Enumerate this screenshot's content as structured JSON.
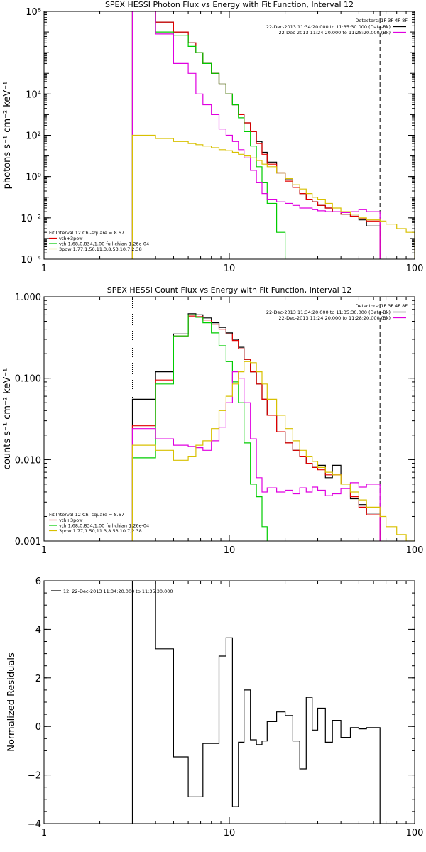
{
  "chart_data": [
    {
      "type": "line",
      "title": "SPEX HESSI Photon Flux vs Energy with Fit Function, Interval 12",
      "ylabel": "photons s⁻¹ cm⁻² keV⁻¹",
      "xscale": "log",
      "yscale": "log",
      "xlim": [
        1,
        100
      ],
      "ylim": [
        0.0001,
        100000000
      ],
      "x_ticks": [
        1,
        10,
        100
      ],
      "x_tick_labels": [
        "1",
        "10",
        "100"
      ],
      "y_ticks": [
        0.0001,
        0.01,
        1,
        100,
        10000,
        100000000
      ],
      "y_tick_labels": [
        "10⁻⁴",
        "10⁻²",
        "10⁰",
        "10²",
        "10⁴",
        "10⁸"
      ],
      "vlines": [
        {
          "x": 3.0,
          "style": "dotted"
        },
        {
          "x": 65,
          "style": "dashed"
        }
      ],
      "legend_header": "Detectors: 1F 3F 4F 8F",
      "legend": [
        {
          "label": "22-Dec-2013 11:34:20.000 to 11:35:30.000 (Data-Bk)",
          "color": "#000000"
        },
        {
          "label": "22-Dec-2013 11:24:20.000 to 11:28:20.000 (Bk)",
          "color": "#e000e0"
        }
      ],
      "fit_header": "Fit Interval 12   Chi-square = 8.67",
      "fit_legend": [
        {
          "label": "vth+3pow",
          "color": "#e00000"
        },
        {
          "label": "vth 1.68,0.834,1.00  full chian 1.26e-04",
          "color": "#00cc00"
        },
        {
          "label": "3pow 1.77,1.50,11.3,8.53,10.7,2.38",
          "color": "#d8c000"
        }
      ],
      "series": [
        {
          "color": "#000000",
          "edges": [
            3.0,
            4.0,
            5.0,
            6.0,
            6.6,
            7.2,
            8.0,
            8.8,
            9.6,
            10.4,
            11.2,
            12.0,
            13.0,
            14.0,
            15.0,
            16.0,
            18.0,
            20.0,
            22.0,
            24.0,
            26.0,
            28.0,
            30.0,
            33.0,
            36.0,
            40.0,
            45.0,
            50.0,
            55.0,
            65.0
          ],
          "values": [
            700000000,
            30000000,
            10000000,
            3000000,
            1000000,
            300000,
            100000,
            30000,
            10000,
            3000,
            1000,
            400,
            150,
            50,
            15,
            5,
            1.5,
            0.7,
            0.3,
            0.15,
            0.08,
            0.06,
            0.04,
            0.03,
            0.02,
            0.015,
            0.012,
            0.008,
            0.004
          ]
        },
        {
          "color": "#e00000",
          "edges": [
            3.0,
            4.0,
            5.0,
            6.0,
            6.6,
            7.2,
            8.0,
            8.8,
            9.6,
            10.4,
            11.2,
            12.0,
            13.0,
            14.0,
            15.0,
            16.0,
            18.0,
            20.0,
            22.0,
            24.0,
            26.0,
            28.0,
            30.0,
            33.0,
            36.0,
            40.0,
            45.0,
            50.0,
            55.0,
            65.0
          ],
          "values": [
            400000000,
            30000000,
            10000000,
            3000000,
            1000000,
            300000,
            100000,
            30000,
            10000,
            3000,
            1000,
            400,
            150,
            40,
            12,
            4,
            1.5,
            0.6,
            0.3,
            0.15,
            0.08,
            0.06,
            0.04,
            0.03,
            0.02,
            0.015,
            0.012,
            0.009,
            0.007
          ]
        },
        {
          "color": "#00cc00",
          "edges": [
            3.0,
            4.0,
            5.0,
            6.0,
            6.6,
            7.2,
            8.0,
            8.8,
            9.6,
            10.4,
            11.2,
            12.0,
            13.0,
            14.0,
            15.0,
            16.0,
            18.0,
            20.0
          ],
          "values": [
            400000000,
            10000000,
            7000000,
            2000000,
            1000000,
            300000,
            100000,
            30000,
            10000,
            3000,
            700,
            150,
            30,
            3,
            0.5,
            0.05,
            0.002,
            0.0001
          ]
        },
        {
          "color": "#e000e0",
          "edges": [
            3.0,
            4.0,
            5.0,
            6.0,
            6.6,
            7.2,
            8.0,
            8.8,
            9.6,
            10.4,
            11.2,
            12.0,
            13.0,
            14.0,
            15.0,
            16.0,
            18.0,
            20.0,
            22.0,
            24.0,
            26.0,
            28.0,
            30.0,
            33.0,
            36.0,
            40.0,
            45.0,
            50.0,
            55.0,
            65.0
          ],
          "values": [
            200000000,
            8000000,
            300000,
            100000,
            10000,
            3000,
            1000,
            200,
            100,
            50,
            20,
            8,
            2,
            0.5,
            0.15,
            0.08,
            0.06,
            0.05,
            0.04,
            0.03,
            0.03,
            0.025,
            0.022,
            0.02,
            0.02,
            0.018,
            0.02,
            0.025,
            0.02
          ]
        },
        {
          "color": "#d8c000",
          "edges": [
            3.0,
            4.0,
            5.0,
            6.0,
            6.6,
            7.2,
            8.0,
            8.8,
            9.6,
            10.4,
            11.2,
            12.0,
            13.0,
            14.0,
            15.0,
            16.0,
            18.0,
            20.0,
            22.0,
            24.0,
            26.0,
            28.0,
            30.0,
            33.0,
            36.0,
            40.0,
            45.0,
            50.0,
            55.0,
            65.0,
            70.0,
            80.0,
            90.0,
            100.0
          ],
          "values": [
            100,
            70,
            50,
            40,
            35,
            30,
            25,
            20,
            18,
            15,
            12,
            10,
            8,
            6,
            4,
            3,
            1.5,
            0.8,
            0.4,
            0.25,
            0.15,
            0.1,
            0.08,
            0.05,
            0.03,
            0.02,
            0.015,
            0.01,
            0.008,
            0.007,
            0.005,
            0.003,
            0.002
          ]
        }
      ]
    },
    {
      "type": "line",
      "title": "SPEX HESSI Count Flux vs Energy with Fit Function, Interval 12",
      "ylabel": "counts s⁻¹ cm⁻² keV⁻¹",
      "xscale": "log",
      "yscale": "log",
      "xlim": [
        1,
        100
      ],
      "ylim": [
        0.001,
        1
      ],
      "x_ticks": [
        1,
        10,
        100
      ],
      "x_tick_labels": [
        "1",
        "10",
        "100"
      ],
      "y_ticks": [
        0.001,
        0.01,
        0.1,
        1
      ],
      "y_tick_labels": [
        "0.001",
        "0.010",
        "0.100",
        "1.000"
      ],
      "vlines": [
        {
          "x": 3.0,
          "style": "dotted"
        },
        {
          "x": 65,
          "style": "dashed"
        }
      ],
      "legend_header": "Detectors: 1F 3F 4F 8F",
      "legend": [
        {
          "label": "22-Dec-2013 11:34:20.000 to 11:35:30.000 (Data-Bk)",
          "color": "#000000"
        },
        {
          "label": "22-Dec-2013 11:24:20.000 to 11:28:20.000 (Bk)",
          "color": "#e000e0"
        }
      ],
      "fit_header": "Fit Interval 12   Chi-square = 8.67",
      "fit_legend": [
        {
          "label": "vth+3pow",
          "color": "#e00000"
        },
        {
          "label": "vth 1.68,0.834,1.00  full chian 1.26e-04",
          "color": "#00cc00"
        },
        {
          "label": "3pow 1.77,1.50,11.3,8.53,10.7,2.38",
          "color": "#d8c000"
        }
      ],
      "series": [
        {
          "color": "#000000",
          "edges": [
            3.0,
            4.0,
            5.0,
            6.0,
            6.6,
            7.2,
            8.0,
            8.8,
            9.6,
            10.4,
            11.2,
            12.0,
            13.0,
            14.0,
            15.0,
            16.0,
            18.0,
            20.0,
            22.0,
            24.0,
            26.0,
            28.0,
            30.0,
            33.0,
            36.0,
            40.0,
            45.0,
            50.0,
            55.0,
            65.0
          ],
          "values": [
            0.055,
            0.12,
            0.35,
            0.62,
            0.6,
            0.55,
            0.48,
            0.42,
            0.36,
            0.3,
            0.24,
            0.17,
            0.12,
            0.085,
            0.055,
            0.035,
            0.022,
            0.016,
            0.013,
            0.011,
            0.009,
            0.008,
            0.0085,
            0.006,
            0.0085,
            0.005,
            0.0033,
            0.0028,
            0.0022
          ]
        },
        {
          "color": "#e00000",
          "edges": [
            3.0,
            4.0,
            5.0,
            6.0,
            6.6,
            7.2,
            8.0,
            8.8,
            9.6,
            10.4,
            11.2,
            12.0,
            13.0,
            14.0,
            15.0,
            16.0,
            18.0,
            20.0,
            22.0,
            24.0,
            26.0,
            28.0,
            30.0,
            33.0,
            36.0,
            40.0,
            45.0,
            50.0,
            55.0,
            65.0
          ],
          "values": [
            0.026,
            0.095,
            0.33,
            0.58,
            0.57,
            0.52,
            0.46,
            0.4,
            0.35,
            0.29,
            0.23,
            0.17,
            0.12,
            0.085,
            0.055,
            0.035,
            0.022,
            0.016,
            0.013,
            0.011,
            0.009,
            0.008,
            0.0075,
            0.0065,
            0.0065,
            0.005,
            0.0035,
            0.0026,
            0.0021
          ]
        },
        {
          "color": "#00cc00",
          "edges": [
            3.0,
            4.0,
            5.0,
            6.0,
            6.6,
            7.2,
            8.0,
            8.8,
            9.6,
            10.4,
            11.2,
            12.0,
            13.0,
            14.0,
            15.0,
            16.0
          ],
          "values": [
            0.0105,
            0.085,
            0.33,
            0.6,
            0.56,
            0.48,
            0.36,
            0.25,
            0.16,
            0.09,
            0.05,
            0.016,
            0.005,
            0.0035,
            0.0015,
            0.0009
          ]
        },
        {
          "color": "#e000e0",
          "edges": [
            3.0,
            4.0,
            5.0,
            6.0,
            6.6,
            7.2,
            8.0,
            8.8,
            9.6,
            10.4,
            11.2,
            12.0,
            13.0,
            14.0,
            15.0,
            16.0,
            18.0,
            20.0,
            22.0,
            24.0,
            26.0,
            28.0,
            30.0,
            33.0,
            36.0,
            40.0,
            45.0,
            50.0,
            55.0,
            65.0
          ],
          "values": [
            0.024,
            0.018,
            0.015,
            0.0145,
            0.014,
            0.013,
            0.017,
            0.025,
            0.05,
            0.12,
            0.1,
            0.05,
            0.018,
            0.006,
            0.004,
            0.0045,
            0.004,
            0.0042,
            0.0038,
            0.0045,
            0.004,
            0.0046,
            0.0042,
            0.0036,
            0.0038,
            0.0044,
            0.0052,
            0.0046,
            0.005
          ]
        },
        {
          "color": "#d8c000",
          "edges": [
            3.0,
            4.0,
            5.0,
            6.0,
            6.6,
            7.2,
            8.0,
            8.8,
            9.6,
            10.4,
            11.2,
            12.0,
            13.0,
            14.0,
            15.0,
            16.0,
            18.0,
            20.0,
            22.0,
            24.0,
            26.0,
            28.0,
            30.0,
            33.0,
            36.0,
            40.0,
            45.0,
            50.0,
            55.0,
            65.0,
            70.0,
            80.0,
            90.0,
            100.0
          ],
          "values": [
            0.015,
            0.013,
            0.0098,
            0.011,
            0.015,
            0.017,
            0.024,
            0.04,
            0.06,
            0.085,
            0.12,
            0.16,
            0.155,
            0.12,
            0.085,
            0.055,
            0.035,
            0.024,
            0.017,
            0.013,
            0.011,
            0.0095,
            0.008,
            0.007,
            0.0065,
            0.005,
            0.004,
            0.0032,
            0.0026,
            0.002,
            0.0015,
            0.0012,
            0.001
          ]
        }
      ]
    },
    {
      "type": "line",
      "title": "",
      "ylabel": "Normalized Residuals",
      "xscale": "log",
      "yscale": "linear",
      "xlim": [
        1,
        100
      ],
      "ylim": [
        -4,
        6
      ],
      "x_ticks": [
        1,
        10,
        100
      ],
      "x_tick_labels": [
        "1",
        "10",
        "100"
      ],
      "y_ticks": [
        -4,
        -2,
        0,
        2,
        4,
        6
      ],
      "y_tick_labels": [
        "−4",
        "−2",
        "0",
        "2",
        "4",
        "6"
      ],
      "legend": [
        {
          "label": "12. 22-Dec-2013 11:34:20.000 to 11:35:30.000",
          "color": "#000000"
        }
      ],
      "series": [
        {
          "color": "#000000",
          "edges": [
            3.0,
            4.0,
            5.0,
            6.0,
            6.6,
            7.2,
            8.0,
            8.8,
            9.6,
            10.4,
            11.2,
            12.0,
            13.0,
            14.0,
            15.0,
            16.0,
            18.0,
            20.0,
            22.0,
            24.0,
            26.0,
            28.0,
            30.0,
            33.0,
            36.0,
            40.0,
            45.0,
            50.0,
            55.0,
            65.0
          ],
          "values": [
            6.0,
            3.2,
            -1.25,
            -2.9,
            -2.9,
            -0.7,
            -0.7,
            2.9,
            3.65,
            -3.3,
            -0.65,
            1.5,
            -0.55,
            -0.75,
            -0.6,
            0.2,
            0.6,
            0.45,
            -0.6,
            -1.75,
            1.2,
            -0.15,
            0.75,
            -0.65,
            0.25,
            -0.45,
            -0.05,
            -0.1,
            -0.05
          ],
          "drop_to_floor": true
        }
      ]
    }
  ]
}
